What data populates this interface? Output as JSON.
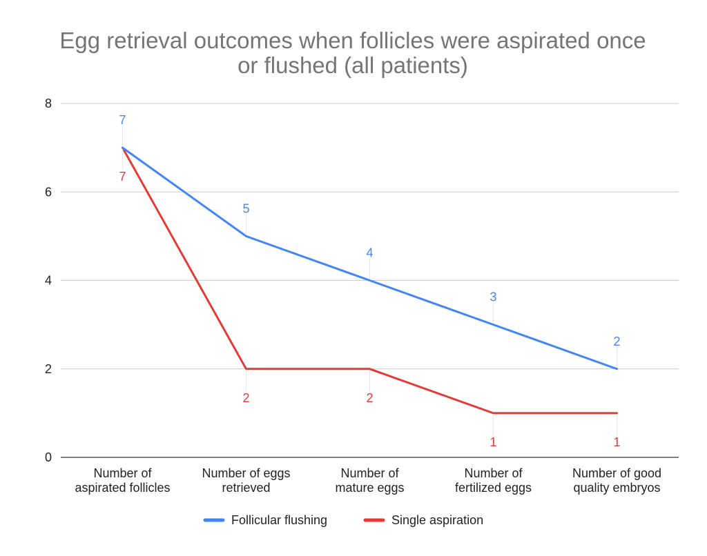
{
  "chart_data": {
    "type": "line",
    "title": "Egg retrieval outcomes when follicles were aspirated once or flushed (all patients)",
    "title_lines": [
      "Egg retrieval outcomes when follicles were aspirated once",
      "or flushed (all patients)"
    ],
    "categories": [
      [
        "Number of",
        "aspirated follicles"
      ],
      [
        "Number of eggs",
        "retrieved"
      ],
      [
        "Number of",
        "mature eggs"
      ],
      [
        "Number of",
        "fertilized eggs"
      ],
      [
        "Number of good",
        "quality embryos"
      ]
    ],
    "ylim": [
      0,
      8
    ],
    "yticks": [
      "0",
      "2",
      "4",
      "6",
      "8"
    ],
    "grid": true,
    "legend_position": "bottom",
    "series": [
      {
        "name": "Follicular flushing",
        "values": [
          7,
          5,
          4,
          3,
          2
        ],
        "color": "#4285f4",
        "label_side": "above"
      },
      {
        "name": "Single aspiration",
        "values": [
          7,
          2,
          2,
          1,
          1
        ],
        "color": "#e53935",
        "label_side": "below"
      }
    ]
  }
}
